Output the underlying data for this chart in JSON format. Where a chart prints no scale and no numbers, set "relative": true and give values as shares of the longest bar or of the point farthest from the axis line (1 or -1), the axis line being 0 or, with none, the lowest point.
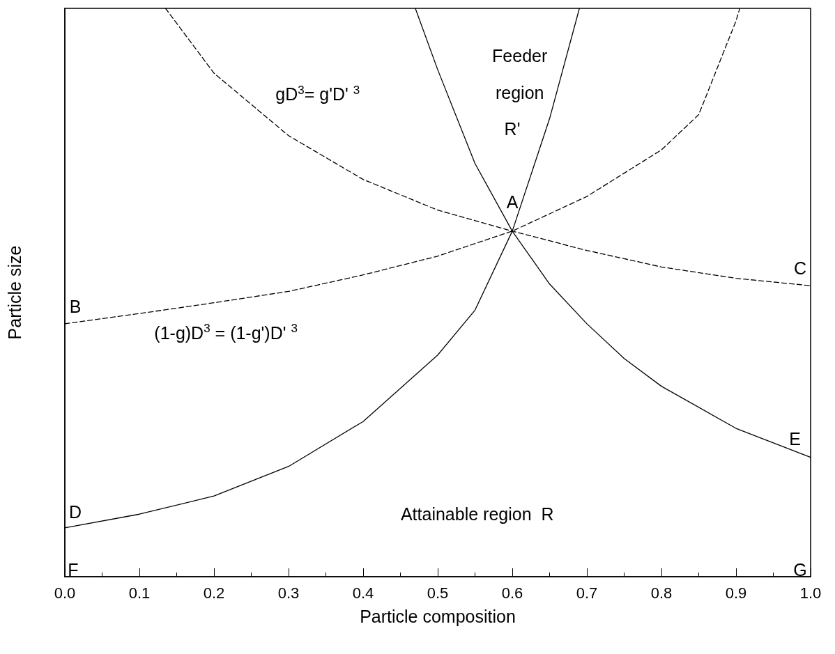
{
  "chart_data": {
    "type": "line",
    "relative": true,
    "xlabel": "Particle composition",
    "ylabel": "Particle size",
    "xlim": [
      0,
      1
    ],
    "xticks": [
      {
        "value": 0,
        "label": "0.0"
      },
      {
        "value": 0.1,
        "label": "0.1"
      },
      {
        "value": 0.2,
        "label": "0.2"
      },
      {
        "value": 0.3,
        "label": "0.3"
      },
      {
        "value": 0.4,
        "label": "0.4"
      },
      {
        "value": 0.5,
        "label": "0.5"
      },
      {
        "value": 0.6,
        "label": "0.6"
      },
      {
        "value": 0.7,
        "label": "0.7"
      },
      {
        "value": 0.8,
        "label": "0.8"
      },
      {
        "value": 0.9,
        "label": "0.9"
      },
      {
        "value": 1,
        "label": "1.0"
      }
    ],
    "grid": false,
    "marker": "none",
    "series": [
      {
        "color": "#000000",
        "line_style": "dashed",
        "x": [
          0.135,
          0.2,
          0.25,
          0.3,
          0.4,
          0.5,
          0.6,
          0.7,
          0.8,
          0.9,
          1.0
        ],
        "values": [
          1,
          0.886,
          0.831,
          0.776,
          0.699,
          0.645,
          0.608,
          0.574,
          0.545,
          0.525,
          0.512
        ]
      },
      {
        "color": "#000000",
        "line_style": "dashed",
        "x": [
          0,
          0.1,
          0.2,
          0.3,
          0.4,
          0.5,
          0.6,
          0.7,
          0.8,
          0.85,
          0.9,
          0.905
        ],
        "values": [
          0.445,
          0.463,
          0.482,
          0.502,
          0.531,
          0.564,
          0.608,
          0.669,
          0.751,
          0.813,
          0.978,
          1
        ]
      },
      {
        "color": "#000000",
        "line_style": "solid",
        "x": [
          0.47,
          0.5,
          0.55,
          0.6,
          0.65,
          0.7,
          0.75,
          0.8,
          0.9,
          1.0
        ],
        "values": [
          1,
          0.892,
          0.727,
          0.608,
          0.515,
          0.445,
          0.384,
          0.335,
          0.261,
          0.21
        ]
      },
      {
        "color": "#000000",
        "line_style": "solid",
        "x": [
          0,
          0.1,
          0.2,
          0.3,
          0.4,
          0.5,
          0.55,
          0.6,
          0.65,
          0.69
        ],
        "values": [
          0.086,
          0.11,
          0.142,
          0.194,
          0.273,
          0.39,
          0.469,
          0.608,
          0.806,
          1
        ]
      }
    ],
    "annotations": [
      "Feeder",
      "region",
      "R'",
      "A",
      "B",
      "C",
      "D",
      "E",
      "F",
      "G",
      "gD$^{3}$= g'D' $^{3}$",
      "(1-g)D$^{3}$ = (1-g')D' $^{3}$",
      "Attainable region  R"
    ]
  }
}
